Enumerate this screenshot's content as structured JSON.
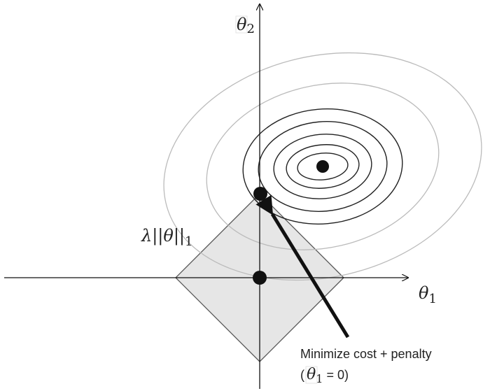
{
  "diagram": {
    "axis_x_label": {
      "symbol": "θ",
      "sub": "1"
    },
    "axis_y_label": {
      "symbol": "θ",
      "sub": "2"
    },
    "penalty_label": {
      "lambda": "λ",
      "norm_open": "||",
      "theta": "θ",
      "norm_close": "||",
      "sub": "1"
    },
    "annotation": {
      "line1": "Minimize cost + penalty",
      "line2_open": "(",
      "line2_symbol": "θ",
      "line2_sub": "1",
      "line2_rest": " = 0)"
    },
    "colors": {
      "axis": "#111111",
      "diamond_fill": "#e6e6e6",
      "diamond_stroke": "#555555",
      "inner_contour": "#222222",
      "outer_contour": "#bbbbbb",
      "point": "#111111",
      "arrow": "#111111"
    }
  }
}
